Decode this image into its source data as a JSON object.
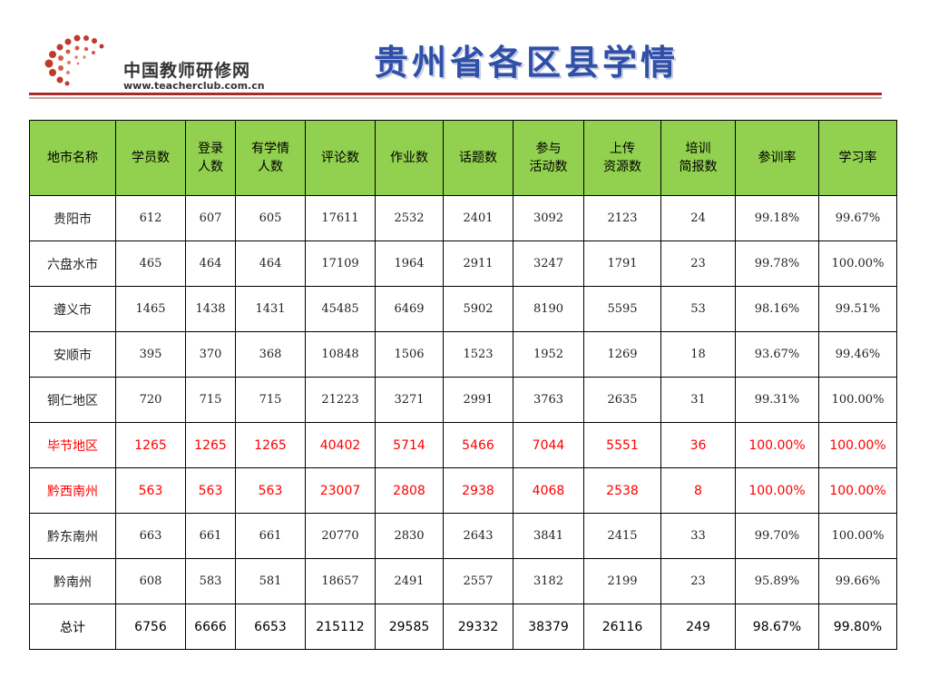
{
  "logo": {
    "name": "中国教师研修网",
    "url": "www.teacherclub.com.cn"
  },
  "title": "贵州省各区县学情",
  "colors": {
    "header_bg": "#92d050",
    "title": "#2f4fa8",
    "highlight_text": "#ff0000",
    "rule": "#a62b2b"
  },
  "table": {
    "headers": [
      "地市名称",
      "学员数",
      "登录\n人数",
      "有学情\n人数",
      "评论数",
      "作业数",
      "话题数",
      "参与\n活动数",
      "上传\n资源数",
      "培训\n简报数",
      "参训率",
      "学习率"
    ],
    "rows": [
      [
        "贵阳市",
        "612",
        "607",
        "605",
        "17611",
        "2532",
        "2401",
        "3092",
        "2123",
        "24",
        "99.18%",
        "99.67%"
      ],
      [
        "六盘水市",
        "465",
        "464",
        "464",
        "17109",
        "1964",
        "2911",
        "3247",
        "1791",
        "23",
        "99.78%",
        "100.00%"
      ],
      [
        "遵义市",
        "1465",
        "1438",
        "1431",
        "45485",
        "6469",
        "5902",
        "8190",
        "5595",
        "53",
        "98.16%",
        "99.51%"
      ],
      [
        "安顺市",
        "395",
        "370",
        "368",
        "10848",
        "1506",
        "1523",
        "1952",
        "1269",
        "18",
        "93.67%",
        "99.46%"
      ],
      [
        "铜仁地区",
        "720",
        "715",
        "715",
        "21223",
        "3271",
        "2991",
        "3763",
        "2635",
        "31",
        "99.31%",
        "100.00%"
      ],
      [
        "毕节地区",
        "1265",
        "1265",
        "1265",
        "40402",
        "5714",
        "5466",
        "7044",
        "5551",
        "36",
        "100.00%",
        "100.00%"
      ],
      [
        "黔西南州",
        "563",
        "563",
        "563",
        "23007",
        "2808",
        "2938",
        "4068",
        "2538",
        "8",
        "100.00%",
        "100.00%"
      ],
      [
        "黔东南州",
        "663",
        "661",
        "661",
        "20770",
        "2830",
        "2643",
        "3841",
        "2415",
        "33",
        "99.70%",
        "100.00%"
      ],
      [
        "黔南州",
        "608",
        "583",
        "581",
        "18657",
        "2491",
        "2557",
        "3182",
        "2199",
        "23",
        "95.89%",
        "99.66%"
      ],
      [
        "总计",
        "6756",
        "6666",
        "6653",
        "215112",
        "29585",
        "29332",
        "38379",
        "26116",
        "249",
        "98.67%",
        "99.80%"
      ]
    ]
  }
}
